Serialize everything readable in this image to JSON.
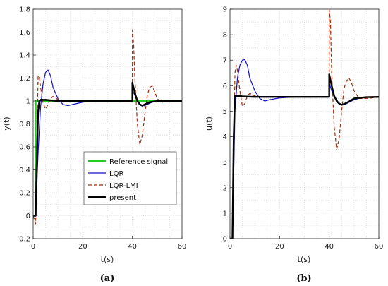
{
  "colors": {
    "reference": "#22cc22",
    "lqr": "#1010c8",
    "lqr_lmi": "#a52a0a",
    "present": "#000000",
    "grid": "#c8c8c8",
    "frame": "#222222"
  },
  "chart_data": [
    {
      "type": "line",
      "panel_label": "(a)",
      "xlabel": "t(s)",
      "ylabel": "y(t)",
      "xlim": [
        0,
        60
      ],
      "ylim": [
        -0.2,
        1.8
      ],
      "xticks": [
        0,
        20,
        40,
        60
      ],
      "yticks": [
        -0.2,
        0,
        0.2,
        0.4,
        0.6,
        0.8,
        1,
        1.2,
        1.4,
        1.6,
        1.8
      ],
      "grid": true,
      "legend": "bottom-right",
      "series": [
        {
          "name": "Reference signal",
          "style": "solid",
          "x": [
            0,
            1,
            1,
            60
          ],
          "y": [
            0,
            0,
            1,
            1
          ]
        },
        {
          "name": "LQR",
          "style": "solid",
          "x": [
            0,
            1,
            2,
            3,
            4,
            5,
            6,
            7,
            8,
            10,
            12,
            14,
            16,
            20,
            25,
            30,
            35,
            40,
            40,
            41,
            42,
            43,
            44,
            45,
            46,
            48,
            50,
            55,
            60
          ],
          "y": [
            0,
            0,
            0.55,
            0.95,
            1.15,
            1.25,
            1.27,
            1.22,
            1.12,
            1.02,
            0.97,
            0.96,
            0.97,
            0.99,
            1.0,
            1.0,
            1.0,
            1.0,
            1.09,
            1.05,
            1.0,
            0.97,
            0.96,
            0.96,
            0.97,
            0.99,
            1.0,
            1.0,
            1.0
          ]
        },
        {
          "name": "LQR-LMI",
          "style": "dashed",
          "x": [
            0,
            1,
            1.5,
            2,
            2.5,
            3,
            4,
            5,
            6,
            7,
            8,
            9,
            10,
            12,
            15,
            20,
            30,
            40,
            40,
            40.5,
            41,
            42,
            43,
            44,
            45,
            46,
            47,
            48,
            49,
            50,
            52,
            55,
            60
          ],
          "y": [
            0,
            -0.07,
            0.6,
            1.22,
            1.21,
            1.12,
            0.98,
            0.93,
            0.97,
            1.02,
            1.04,
            1.03,
            1.01,
            1.0,
            1.0,
            1.0,
            1.0,
            1.0,
            1.62,
            1.5,
            1.2,
            0.8,
            0.62,
            0.7,
            0.88,
            1.05,
            1.12,
            1.13,
            1.08,
            1.02,
            0.99,
            1.0,
            1.0
          ]
        },
        {
          "name": "present",
          "style": "solid",
          "x": [
            0,
            1,
            1.5,
            2,
            2.5,
            3,
            4,
            5,
            10,
            20,
            30,
            40,
            40,
            41,
            42,
            43,
            44,
            45,
            47,
            50,
            55,
            60
          ],
          "y": [
            0,
            0,
            0.5,
            0.9,
            1.0,
            1.01,
            1.01,
            1.01,
            1.0,
            1.0,
            1.0,
            1.0,
            1.16,
            1.07,
            1.0,
            0.97,
            0.96,
            0.97,
            0.99,
            1.0,
            1.0,
            1.0
          ]
        }
      ]
    },
    {
      "type": "line",
      "panel_label": "(b)",
      "xlabel": "t(s)",
      "ylabel": "u(t)",
      "xlim": [
        0,
        60
      ],
      "ylim": [
        0,
        9
      ],
      "xticks": [
        0,
        20,
        40,
        60
      ],
      "yticks": [
        0,
        1,
        2,
        3,
        4,
        5,
        6,
        7,
        8,
        9
      ],
      "grid": true,
      "legend": "none",
      "series": [
        {
          "name": "LQR",
          "style": "solid",
          "x": [
            0,
            1,
            2,
            3,
            4,
            5,
            6,
            7,
            8,
            10,
            12,
            14,
            16,
            20,
            25,
            30,
            35,
            40,
            40,
            41,
            42,
            43,
            44,
            45,
            46,
            48,
            50,
            52,
            55,
            60
          ],
          "y": [
            0,
            0,
            5.0,
            6.3,
            6.8,
            7.0,
            7.02,
            6.8,
            6.3,
            5.8,
            5.5,
            5.4,
            5.45,
            5.52,
            5.55,
            5.55,
            5.55,
            5.55,
            6.1,
            5.8,
            5.6,
            5.45,
            5.3,
            5.25,
            5.25,
            5.35,
            5.45,
            5.5,
            5.55,
            5.55
          ]
        },
        {
          "name": "LQR-LMI",
          "style": "dashed",
          "x": [
            0,
            1,
            1.5,
            2,
            2.5,
            3,
            4,
            5,
            6,
            7,
            8,
            9,
            10,
            12,
            15,
            20,
            30,
            40,
            40,
            40.5,
            41,
            42,
            43,
            44,
            45,
            46,
            47,
            48,
            49,
            50,
            52,
            55,
            60
          ],
          "y": [
            0,
            -0.4,
            3.5,
            6.5,
            6.8,
            6.6,
            5.8,
            5.2,
            5.3,
            5.6,
            5.7,
            5.65,
            5.6,
            5.55,
            5.55,
            5.55,
            5.55,
            5.55,
            9.0,
            8.5,
            6.5,
            4.4,
            3.5,
            3.9,
            5.0,
            5.9,
            6.2,
            6.3,
            6.1,
            5.8,
            5.5,
            5.5,
            5.55
          ]
        },
        {
          "name": "present",
          "style": "solid",
          "x": [
            0,
            1,
            1.5,
            2,
            3,
            5,
            10,
            20,
            30,
            40,
            40,
            41,
            42,
            43,
            44,
            45,
            46,
            48,
            50,
            55,
            60
          ],
          "y": [
            0,
            0,
            4.0,
            5.6,
            5.6,
            5.58,
            5.56,
            5.56,
            5.56,
            5.56,
            6.45,
            6.0,
            5.6,
            5.4,
            5.3,
            5.25,
            5.28,
            5.38,
            5.5,
            5.55,
            5.56
          ]
        }
      ]
    }
  ]
}
